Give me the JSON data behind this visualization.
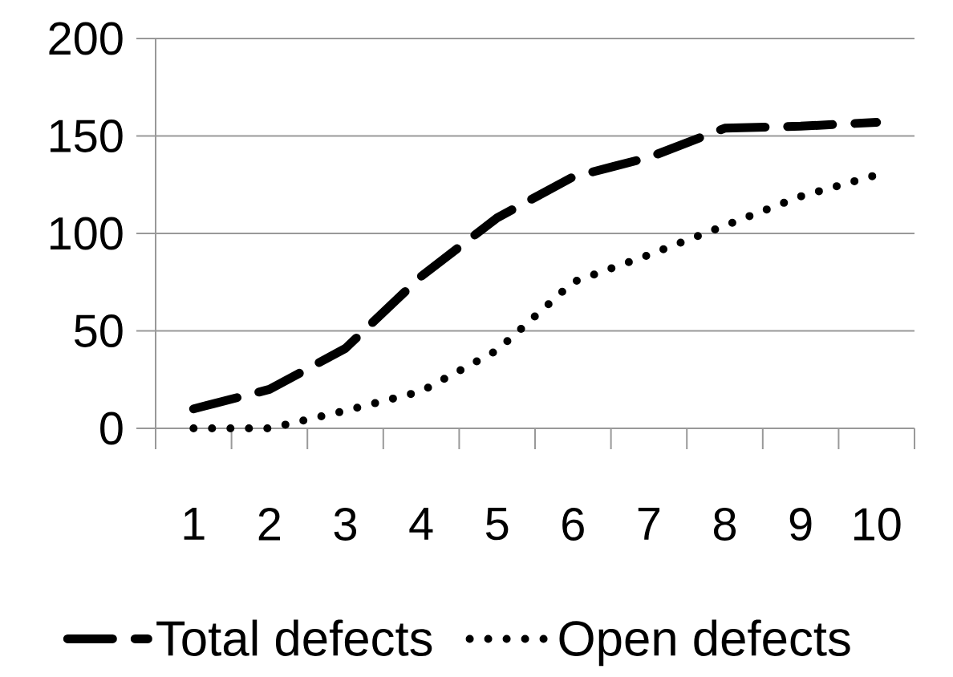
{
  "chart_data": {
    "type": "line",
    "categories": [
      "1",
      "2",
      "3",
      "4",
      "5",
      "6",
      "7",
      "8",
      "9",
      "10"
    ],
    "series": [
      {
        "name": "Total defects",
        "color": "#000000",
        "line_style": "dashed",
        "values": [
          10,
          20,
          41,
          78,
          108,
          129,
          139,
          154,
          155,
          157
        ]
      },
      {
        "name": "Open defects",
        "color": "#000000",
        "line_style": "dotted",
        "values": [
          0,
          0,
          9,
          19,
          40,
          75,
          89,
          104,
          119,
          130
        ]
      }
    ],
    "ylim": [
      0,
      200
    ],
    "yticks": [
      0,
      50,
      100,
      150,
      200
    ],
    "grid": "y",
    "legend": "bottom",
    "marker": "none"
  }
}
